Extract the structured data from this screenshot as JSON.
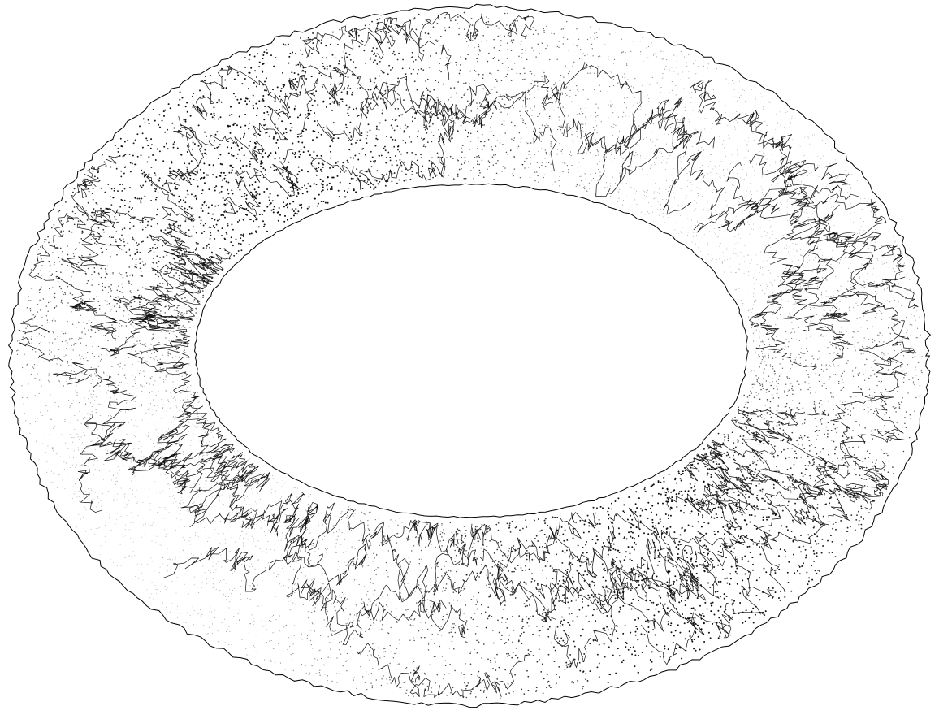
{
  "image": {
    "kind": "stippled torus with random-walk line paths",
    "background_color": "#ffffff",
    "ink_color": "#000000"
  }
}
